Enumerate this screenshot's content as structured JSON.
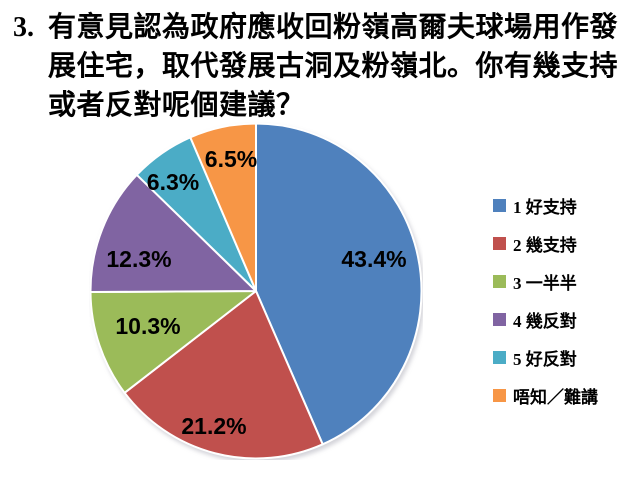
{
  "page": {
    "background": "#ffffff"
  },
  "question": {
    "number": "3.",
    "text": "有意見認為政府應收回粉嶺高爾夫球場用作發展住宅，取代發展古洞及粉嶺北。你有幾支持或者反對呢個建議？"
  },
  "chart_data": {
    "type": "pie",
    "title": "",
    "categories": [
      "1 好支持",
      "2 幾支持",
      "3 一半半",
      "4 幾反對",
      "5 好反對",
      "唔知／難講"
    ],
    "values": [
      43.4,
      21.2,
      10.3,
      12.3,
      6.3,
      6.5
    ],
    "data_labels": [
      "43.4%",
      "21.2%",
      "10.3%",
      "12.3%",
      "6.3%",
      "6.5%"
    ],
    "unit": "%",
    "colors": [
      "#4F81BD",
      "#C0504D",
      "#9BBB59",
      "#8064A2",
      "#4BACC6",
      "#F79646"
    ],
    "slice_border_color": "#FFFFFF",
    "label_color": "#000000",
    "start_angle_deg": 0,
    "direction": "clockwise",
    "legend_position": "right",
    "legend": [
      "1 好支持",
      "2 幾支持",
      "3 一半半",
      "4 幾反對",
      "5 好反對",
      "唔知／難講"
    ]
  }
}
